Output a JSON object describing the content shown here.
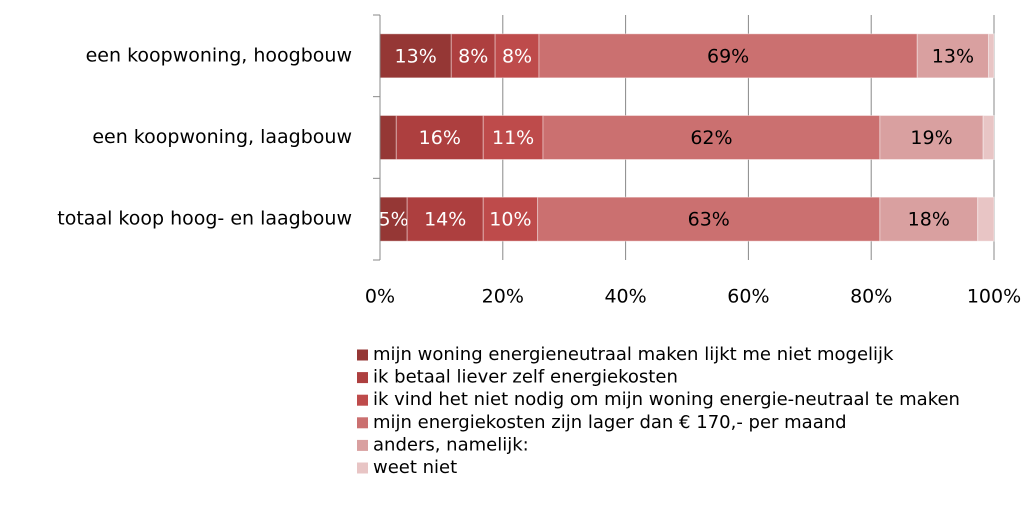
{
  "chart_data": {
    "type": "bar",
    "orientation": "horizontal",
    "stacking": "percent",
    "categories": [
      "een koopwoning, hoogbouw",
      "een koopwoning, laagbouw",
      "totaal koop hoog- en laagbouw"
    ],
    "series": [
      {
        "name": "mijn woning energieneutraal maken lijkt me niet mogelijk",
        "color": "#953735",
        "values": [
          13,
          3,
          5
        ],
        "value_labels": [
          "13%",
          null,
          "5%"
        ]
      },
      {
        "name": "ik betaal liever zelf energiekosten",
        "color": "#ad3f3f",
        "values": [
          8,
          16,
          14
        ],
        "value_labels": [
          "8%",
          "16%",
          "14%"
        ]
      },
      {
        "name": "ik vind het niet nodig om mijn woning energie-neutraal te maken",
        "color": "#be4b4b",
        "values": [
          8,
          11,
          10
        ],
        "value_labels": [
          "8%",
          "11%",
          "10%"
        ]
      },
      {
        "name": "mijn energiekosten zijn lager dan € 170,- per maand",
        "color": "#cb7070",
        "values": [
          69,
          62,
          63
        ],
        "value_labels": [
          "69%",
          "62%",
          "63%"
        ]
      },
      {
        "name": "anders, namelijk:",
        "color": "#d9a0a0",
        "values": [
          13,
          19,
          18
        ],
        "value_labels": [
          "13%",
          "19%",
          "18%"
        ]
      },
      {
        "name": "weet niet",
        "color": "#e8c5c5",
        "values": [
          1,
          2,
          3
        ],
        "value_labels": [
          null,
          null,
          null
        ]
      }
    ],
    "xlim": [
      0,
      100
    ],
    "xticks": [
      {
        "value": 0,
        "label": "0%"
      },
      {
        "value": 20,
        "label": "20%"
      },
      {
        "value": 40,
        "label": "40%"
      },
      {
        "value": 60,
        "label": "60%"
      },
      {
        "value": 80,
        "label": "80%"
      },
      {
        "value": 100,
        "label": "100%"
      }
    ],
    "grid": true,
    "legend": "bottom"
  }
}
